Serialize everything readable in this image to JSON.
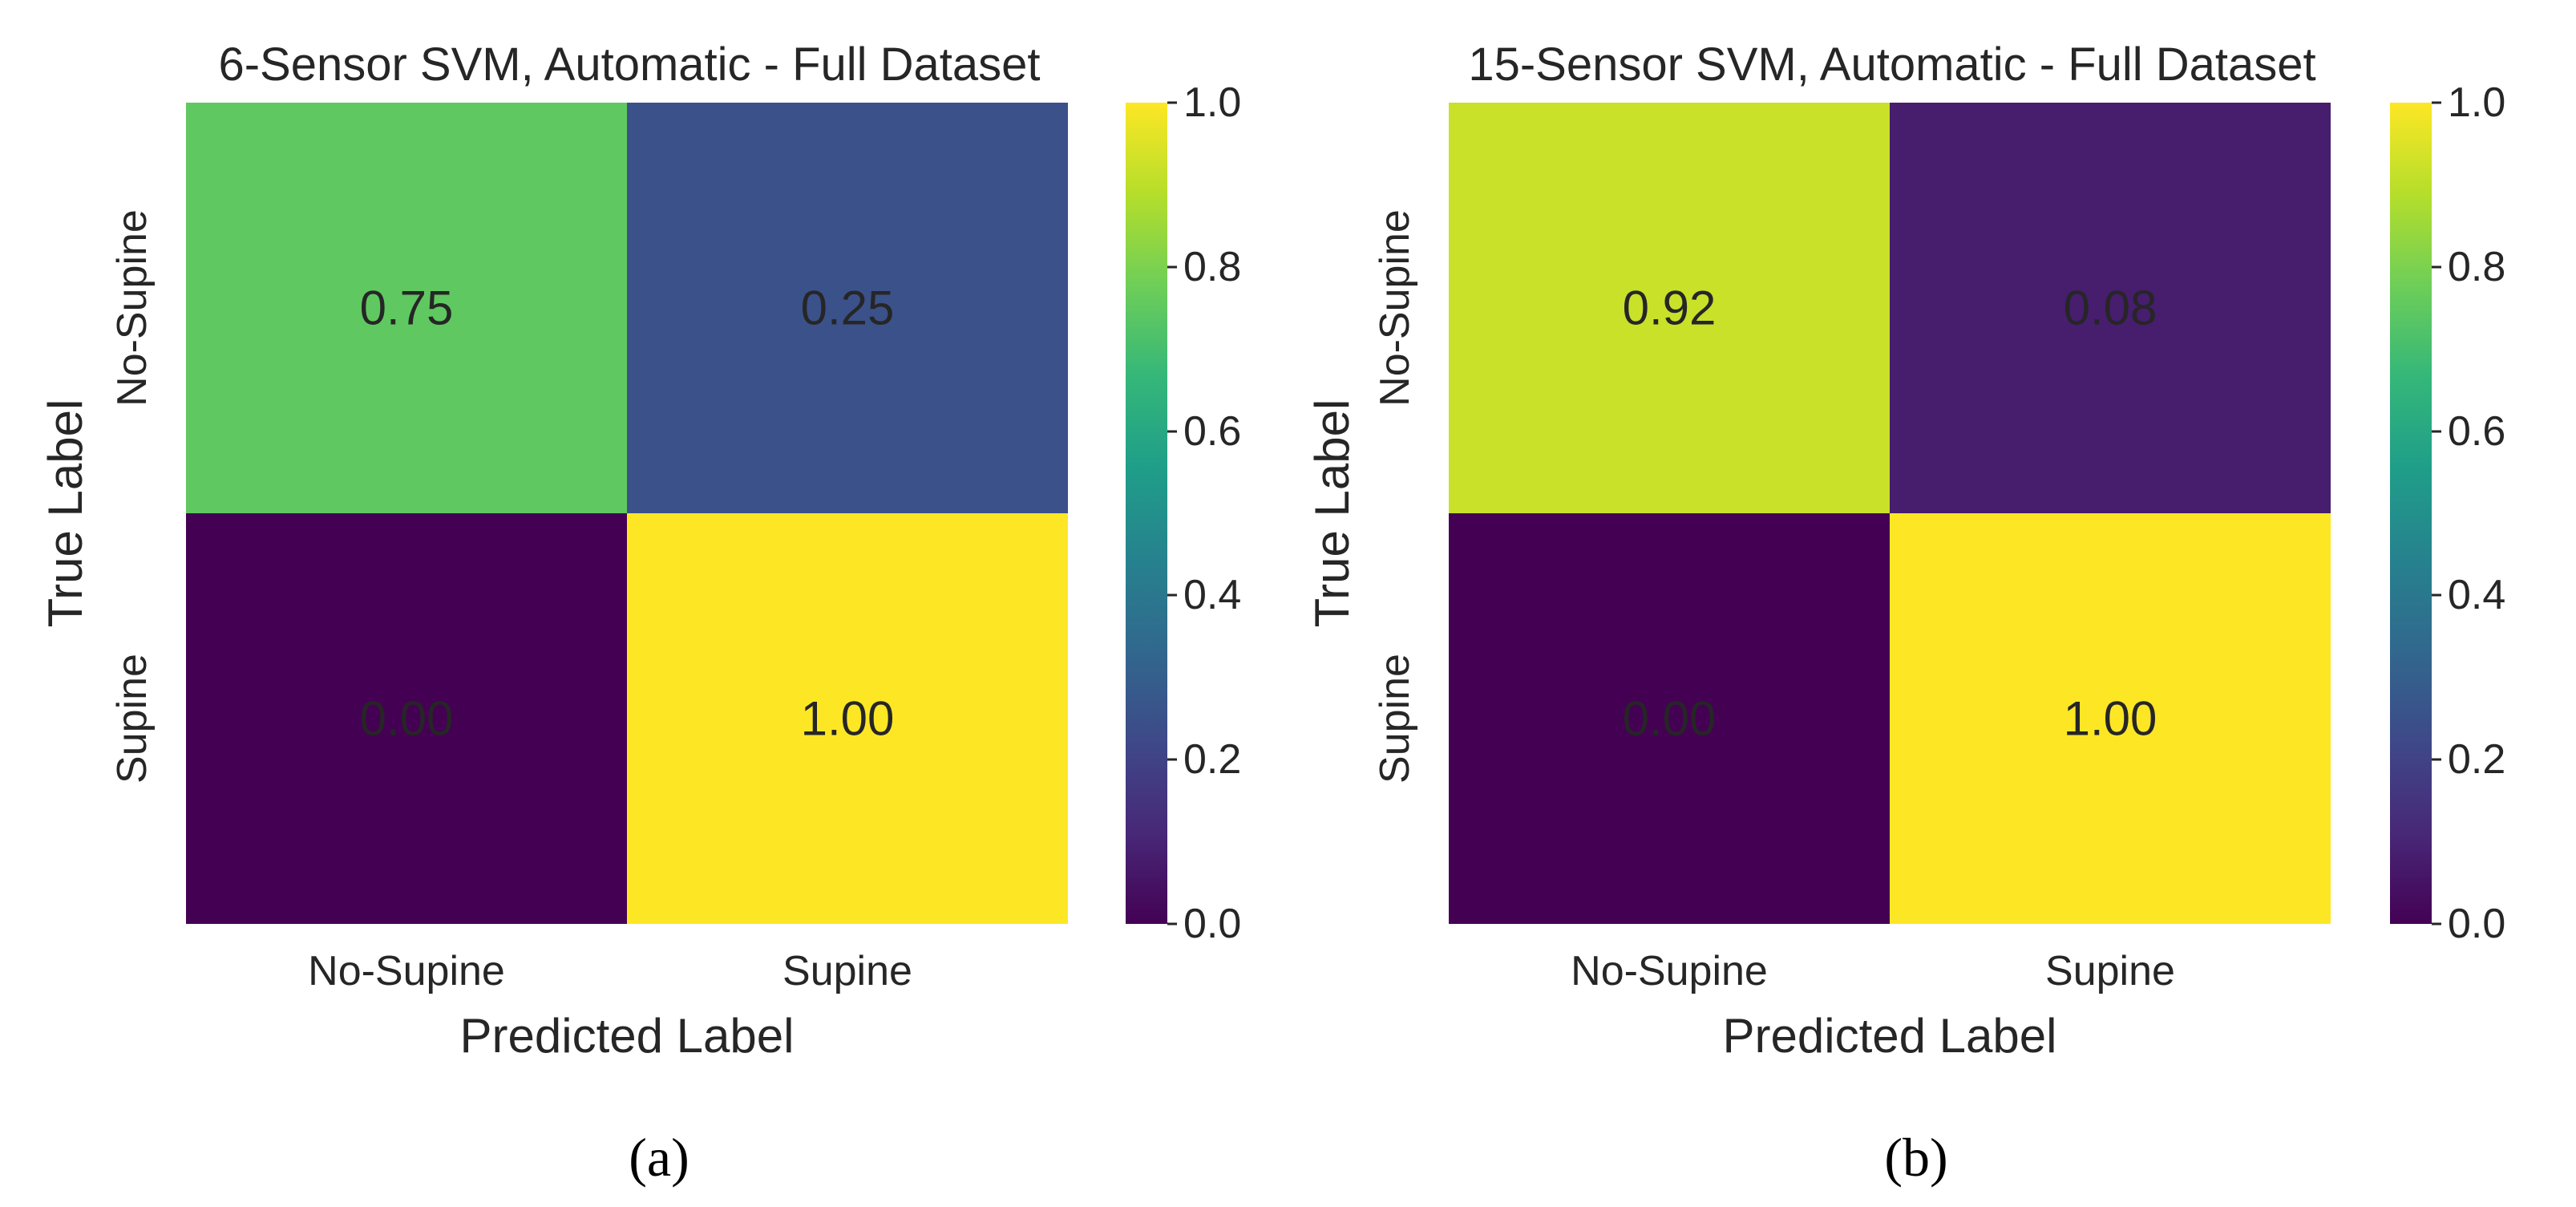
{
  "colors": {
    "viridis_stops": [
      "#440154",
      "#482878",
      "#3e4989",
      "#31688e",
      "#26828e",
      "#1f9e89",
      "#35b779",
      "#6ece58",
      "#b5de2b",
      "#fde725"
    ],
    "text_dark": "#262626",
    "text_light": "#ffffff"
  },
  "chart_data": [
    {
      "type": "heatmap",
      "name": "panel-a",
      "title": "6-Sensor SVM, Automatic - Full Dataset",
      "xlabel": "Predicted Label",
      "ylabel": "True Label",
      "x_categories": [
        "No-Supine",
        "Supine"
      ],
      "y_categories": [
        "No-Supine",
        "Supine"
      ],
      "values": [
        [
          0.75,
          0.25
        ],
        [
          0.0,
          1.0
        ]
      ],
      "value_labels": [
        [
          "0.75",
          "0.25"
        ],
        [
          "0.00",
          "1.00"
        ]
      ],
      "colorbar": {
        "range": [
          0.0,
          1.0
        ],
        "ticks": [
          "0.0",
          "0.2",
          "0.4",
          "0.6",
          "0.8",
          "1.0"
        ],
        "colormap": "viridis"
      },
      "caption": "(a)"
    },
    {
      "type": "heatmap",
      "name": "panel-b",
      "title": "15-Sensor SVM, Automatic - Full Dataset",
      "xlabel": "Predicted Label",
      "ylabel": "True Label",
      "x_categories": [
        "No-Supine",
        "Supine"
      ],
      "y_categories": [
        "No-Supine",
        "Supine"
      ],
      "values": [
        [
          0.92,
          0.08
        ],
        [
          0.0,
          1.0
        ]
      ],
      "value_labels": [
        [
          "0.92",
          "0.08"
        ],
        [
          "0.00",
          "1.00"
        ]
      ],
      "colorbar": {
        "range": [
          0.0,
          1.0
        ],
        "ticks": [
          "0.0",
          "0.2",
          "0.4",
          "0.6",
          "0.8",
          "1.0"
        ],
        "colormap": "viridis"
      },
      "caption": "(b)"
    }
  ]
}
